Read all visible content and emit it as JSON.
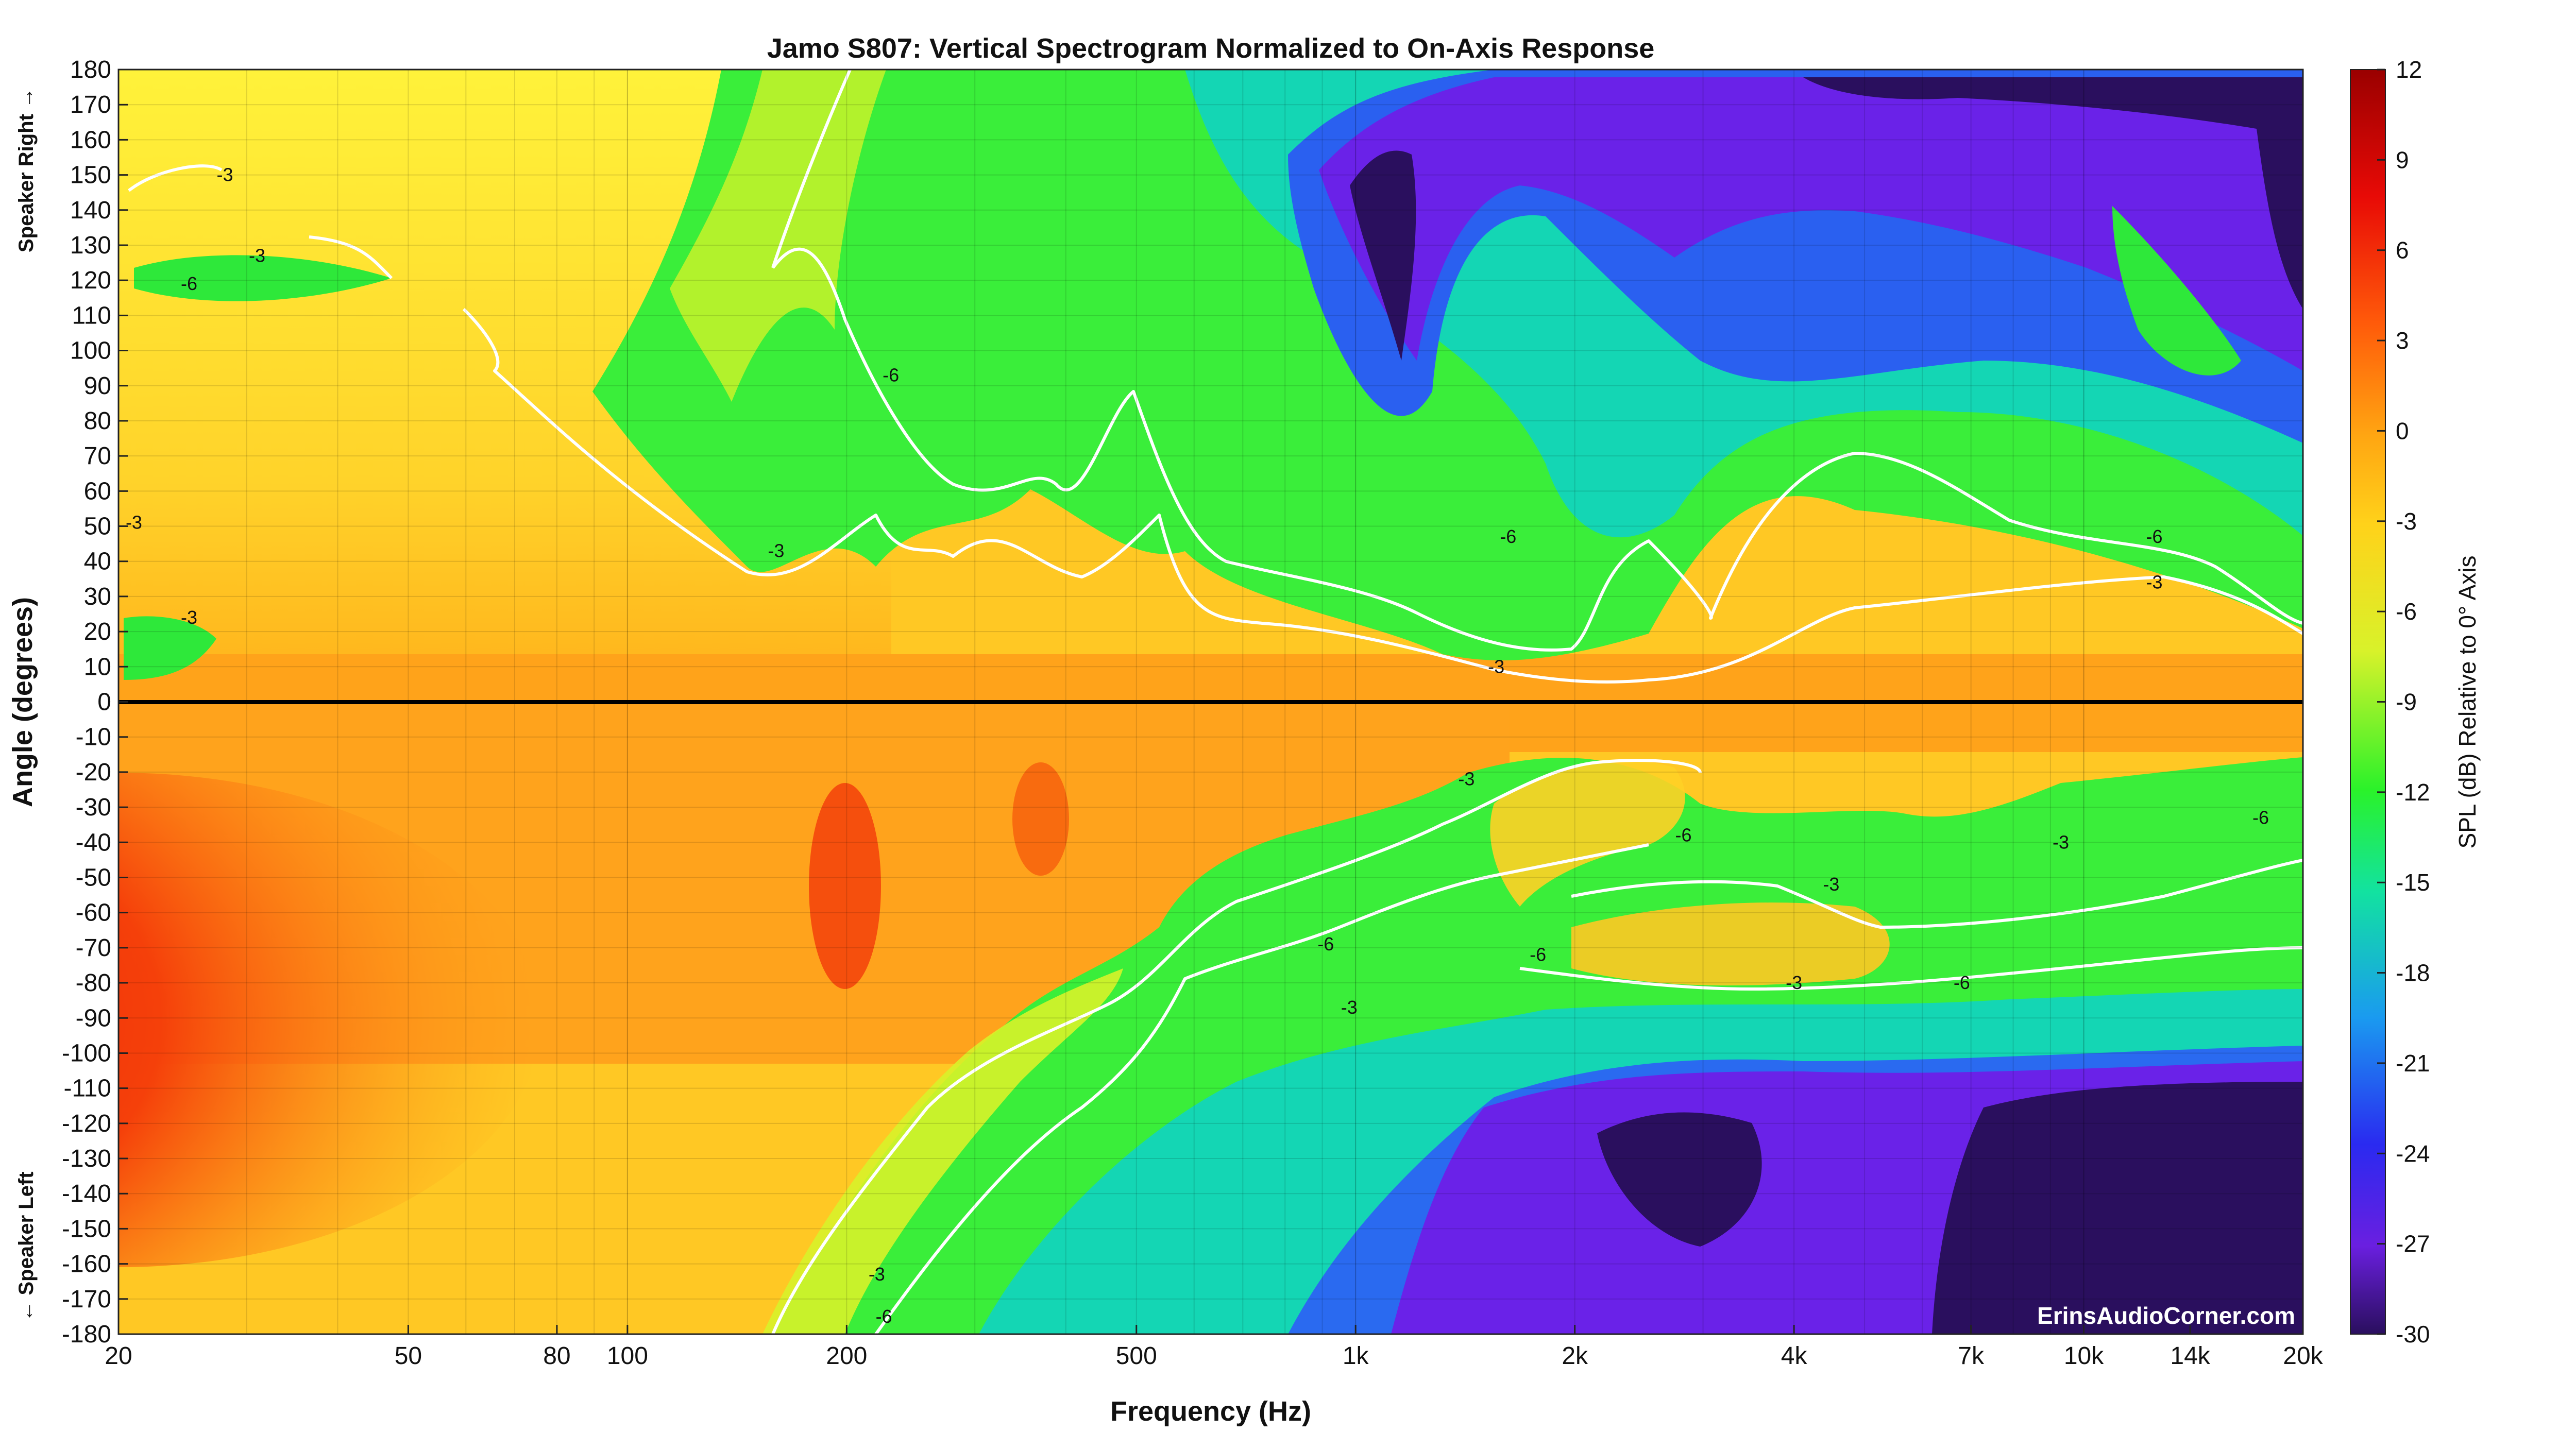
{
  "chart_data": {
    "type": "heatmap",
    "title": "Jamo S807: Vertical Spectrogram Normalized to On-Axis Response",
    "xlabel": "Frequency (Hz)",
    "ylabel": "Angle (degrees)",
    "side_label_top": "Speaker Right →",
    "side_label_bottom": "← Speaker Left",
    "x_scale": "log",
    "xlim": [
      20,
      20000
    ],
    "ylim": [
      -180,
      180
    ],
    "x_ticks": [
      {
        "value": 20,
        "label": "20"
      },
      {
        "value": 50,
        "label": "50"
      },
      {
        "value": 80,
        "label": "80"
      },
      {
        "value": 100,
        "label": "100"
      },
      {
        "value": 200,
        "label": "200"
      },
      {
        "value": 500,
        "label": "500"
      },
      {
        "value": 1000,
        "label": "1k"
      },
      {
        "value": 2000,
        "label": "2k"
      },
      {
        "value": 4000,
        "label": "4k"
      },
      {
        "value": 7000,
        "label": "7k"
      },
      {
        "value": 10000,
        "label": "10k"
      },
      {
        "value": 14000,
        "label": "14k"
      },
      {
        "value": 20000,
        "label": "20k"
      }
    ],
    "y_ticks": [
      180,
      170,
      160,
      150,
      140,
      130,
      120,
      110,
      100,
      90,
      80,
      70,
      60,
      50,
      40,
      30,
      20,
      10,
      0,
      -10,
      -20,
      -30,
      -40,
      -50,
      -60,
      -70,
      -80,
      -90,
      -100,
      -110,
      -120,
      -130,
      -140,
      -150,
      -160,
      -170,
      -180
    ],
    "colorbar": {
      "label": "SPL (dB) Relative to 0° Axis",
      "range": [
        -30,
        12
      ],
      "ticks": [
        12,
        9,
        6,
        3,
        0,
        -3,
        -6,
        -9,
        -12,
        -15,
        -18,
        -21,
        -24,
        -27,
        -30
      ]
    },
    "contour_levels": [
      -3,
      -6
    ],
    "contour_labels": [
      {
        "text": "-3",
        "f": 28,
        "a": 150
      },
      {
        "text": "-3",
        "f": 31,
        "a": 127
      },
      {
        "text": "-6",
        "f": 25,
        "a": 119
      },
      {
        "text": "-3",
        "f": 21,
        "a": 51
      },
      {
        "text": "-3",
        "f": 25,
        "a": 24
      },
      {
        "text": "-6",
        "f": 230,
        "a": 93
      },
      {
        "text": "-3",
        "f": 160,
        "a": 43
      },
      {
        "text": "-6",
        "f": 1620,
        "a": 47
      },
      {
        "text": "-3",
        "f": 1560,
        "a": 10
      },
      {
        "text": "-3",
        "f": 1420,
        "a": -22
      },
      {
        "text": "-6",
        "f": 2820,
        "a": -38
      },
      {
        "text": "-6",
        "f": 910,
        "a": -69
      },
      {
        "text": "-3",
        "f": 980,
        "a": -87
      },
      {
        "text": "-6",
        "f": 1780,
        "a": -72
      },
      {
        "text": "-3",
        "f": 4500,
        "a": -52
      },
      {
        "text": "-3",
        "f": 4000,
        "a": -80
      },
      {
        "text": "-6",
        "f": 6800,
        "a": -80
      },
      {
        "text": "-3",
        "f": 9300,
        "a": -40
      },
      {
        "text": "-6",
        "f": 12500,
        "a": 47
      },
      {
        "text": "-3",
        "f": 12500,
        "a": 34
      },
      {
        "text": "-6",
        "f": 17500,
        "a": -33
      },
      {
        "text": "-3",
        "f": 220,
        "a": -163
      },
      {
        "text": "-6",
        "f": 225,
        "a": -175
      }
    ],
    "watermark": "ErinsAudioCorner.com"
  }
}
